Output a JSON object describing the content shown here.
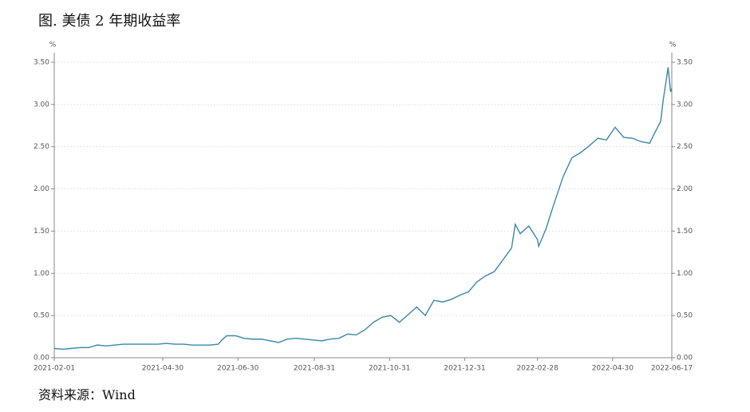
{
  "chart_data": {
    "type": "line",
    "title": "图. 美债 2 年期收益率",
    "source": "资料来源：Wind",
    "y_unit": "%",
    "y2_unit": "%",
    "color": "#3a87aa",
    "grid": true,
    "x": [
      "2021-02-01",
      "2021-02-08",
      "2021-02-15",
      "2021-02-22",
      "2021-03-01",
      "2021-03-08",
      "2021-03-15",
      "2021-03-22",
      "2021-03-29",
      "2021-04-05",
      "2021-04-12",
      "2021-04-19",
      "2021-04-26",
      "2021-05-03",
      "2021-05-10",
      "2021-05-17",
      "2021-05-24",
      "2021-05-31",
      "2021-06-07",
      "2021-06-14",
      "2021-06-17",
      "2021-06-21",
      "2021-06-28",
      "2021-07-05",
      "2021-07-12",
      "2021-07-19",
      "2021-07-26",
      "2021-08-02",
      "2021-08-09",
      "2021-08-16",
      "2021-08-23",
      "2021-08-30",
      "2021-09-06",
      "2021-09-13",
      "2021-09-20",
      "2021-09-27",
      "2021-10-04",
      "2021-10-11",
      "2021-10-18",
      "2021-10-25",
      "2021-11-01",
      "2021-11-08",
      "2021-11-15",
      "2021-11-22",
      "2021-11-29",
      "2021-12-06",
      "2021-12-13",
      "2021-12-20",
      "2021-12-27",
      "2022-01-03",
      "2022-01-10",
      "2022-01-17",
      "2022-01-24",
      "2022-01-31",
      "2022-02-07",
      "2022-02-10",
      "2022-02-14",
      "2022-02-21",
      "2022-02-28",
      "2022-03-01",
      "2022-03-07",
      "2022-03-14",
      "2022-03-21",
      "2022-03-28",
      "2022-04-04",
      "2022-04-11",
      "2022-04-18",
      "2022-04-25",
      "2022-05-02",
      "2022-05-09",
      "2022-05-16",
      "2022-05-23",
      "2022-05-30",
      "2022-06-03",
      "2022-06-08",
      "2022-06-10",
      "2022-06-13",
      "2022-06-14",
      "2022-06-16",
      "2022-06-17"
    ],
    "values": [
      0.11,
      0.1,
      0.11,
      0.12,
      0.12,
      0.15,
      0.14,
      0.15,
      0.16,
      0.16,
      0.16,
      0.16,
      0.16,
      0.17,
      0.16,
      0.16,
      0.15,
      0.15,
      0.15,
      0.16,
      0.21,
      0.26,
      0.26,
      0.23,
      0.22,
      0.22,
      0.2,
      0.18,
      0.22,
      0.23,
      0.22,
      0.21,
      0.2,
      0.22,
      0.23,
      0.28,
      0.27,
      0.33,
      0.42,
      0.48,
      0.5,
      0.42,
      0.51,
      0.6,
      0.5,
      0.68,
      0.66,
      0.69,
      0.74,
      0.78,
      0.9,
      0.97,
      1.02,
      1.16,
      1.3,
      1.58,
      1.47,
      1.56,
      1.4,
      1.32,
      1.53,
      1.85,
      2.15,
      2.37,
      2.43,
      2.51,
      2.6,
      2.58,
      2.73,
      2.61,
      2.6,
      2.56,
      2.54,
      2.66,
      2.8,
      3.05,
      3.34,
      3.44,
      3.15,
      3.19
    ],
    "xlim": [
      "2021-02-01",
      "2022-06-17"
    ],
    "xticks": [
      "2021-02-01",
      "2021-04-30",
      "2021-06-30",
      "2021-08-31",
      "2021-10-31",
      "2021-12-31",
      "2022-02-28",
      "2022-04-30",
      "2022-06-17"
    ],
    "ylim": [
      0,
      3.5
    ],
    "yticks": [
      {
        "value": 0,
        "label": "0.00"
      },
      {
        "value": 0.5,
        "label": "0.50"
      },
      {
        "value": 1,
        "label": "1.00"
      },
      {
        "value": 1.5,
        "label": "1.50"
      },
      {
        "value": 2,
        "label": "2.00"
      },
      {
        "value": 2.5,
        "label": "2.50"
      },
      {
        "value": 3,
        "label": "3.00"
      },
      {
        "value": 3.5,
        "label": "3.50"
      }
    ],
    "y2lim": [
      0,
      3.5
    ],
    "y2ticks": [
      {
        "value": 0,
        "label": "0.00"
      },
      {
        "value": 0.5,
        "label": "0.50"
      },
      {
        "value": 1,
        "label": "1.00"
      },
      {
        "value": 1.5,
        "label": "1.50"
      },
      {
        "value": 2,
        "label": "2.00"
      },
      {
        "value": 2.5,
        "label": "2.50"
      },
      {
        "value": 3,
        "label": "3.00"
      },
      {
        "value": 3.5,
        "label": "3.50"
      }
    ]
  }
}
